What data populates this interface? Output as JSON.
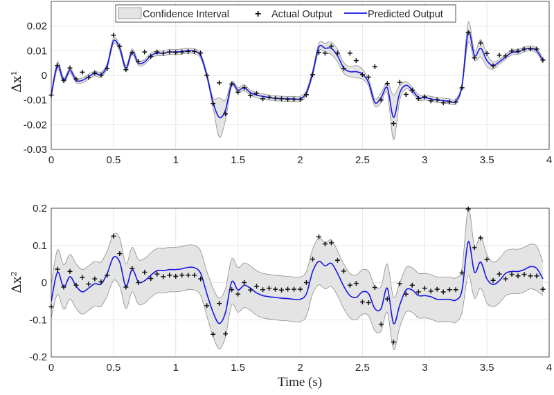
{
  "legend": {
    "ci_label": "Confidence Interval",
    "actual_label": "Actual Output",
    "predicted_label": "Predicted Output"
  },
  "colors": {
    "predicted": "#1414e6",
    "ci_fill": "#e4e4e4",
    "ci_edge": "#8c8c8c",
    "actual": "#111111",
    "grid": "#e6e6e6"
  },
  "chart_data": [
    {
      "type": "line",
      "ylabel": "Δx¹",
      "xlabel": "",
      "xlim": [
        0,
        4
      ],
      "ylim": [
        -0.03,
        0.03
      ],
      "xticks": [
        "0",
        "0.5",
        "1",
        "1.5",
        "2",
        "2.5",
        "3",
        "3.5",
        "4"
      ],
      "yticks": [
        "-0.03",
        "-0.02",
        "-0.01",
        "0",
        "0.01",
        "0.02"
      ],
      "ytick_values": [
        -0.03,
        -0.02,
        -0.01,
        0,
        0.01,
        0.02
      ],
      "grid": true,
      "legend_position": "top",
      "x_start": 0,
      "x_step": 0.05,
      "series": [
        {
          "name": "Actual Output",
          "marker": "+",
          "values": [
            -0.008,
            0.004,
            -0.002,
            0.003,
            -0.0015,
            0.0013,
            -0.0008,
            0.001,
            0.0001,
            0.0028,
            0.0163,
            0.0118,
            0.0023,
            0.0093,
            0.0057,
            0.0095,
            0.0077,
            0.0095,
            0.009,
            0.0095,
            0.0093,
            0.0095,
            0.0097,
            0.0097,
            0.0091,
            0.0,
            -0.0114,
            -0.003,
            -0.0156,
            -0.0035,
            -0.0068,
            -0.005,
            -0.0082,
            -0.0073,
            -0.0095,
            -0.0088,
            -0.0092,
            -0.0095,
            -0.0097,
            -0.0097,
            -0.0097,
            -0.0078,
            0.0003,
            0.0093,
            0.009,
            0.0118,
            0.009,
            0.0028,
            0.009,
            0.006,
            0.0003,
            -0.0007,
            0.0035,
            -0.01,
            -0.0033,
            -0.0195,
            -0.0028,
            -0.0077,
            -0.006,
            -0.0094,
            -0.0087,
            -0.0103,
            -0.0098,
            -0.0111,
            -0.0108,
            -0.0108,
            -0.005,
            0.0173,
            0.0071,
            0.0131,
            0.0089,
            0.0039,
            0.0082,
            0.0079,
            0.0099,
            0.0099,
            0.0107,
            0.0107,
            0.0107,
            0.0062
          ]
        },
        {
          "name": "Predicted Output",
          "values": [
            -0.008,
            0.004,
            -0.002,
            0.002,
            -0.002,
            -0.002,
            -0.0005,
            0.0008,
            0.0003,
            0.004,
            0.014,
            0.011,
            0.003,
            0.0095,
            0.005,
            0.0055,
            0.008,
            0.009,
            0.009,
            0.0095,
            0.0095,
            0.0097,
            0.01,
            0.0098,
            0.008,
            0.0,
            -0.011,
            -0.017,
            -0.014,
            -0.0035,
            -0.006,
            -0.005,
            -0.007,
            -0.008,
            -0.0085,
            -0.009,
            -0.0093,
            -0.0094,
            -0.0095,
            -0.0095,
            -0.0095,
            -0.007,
            0.001,
            0.0115,
            0.011,
            0.011,
            0.008,
            0.003,
            0.0015,
            0.0015,
            0.0005,
            -0.003,
            -0.011,
            -0.009,
            -0.005,
            -0.017,
            -0.007,
            -0.004,
            -0.006,
            -0.009,
            -0.009,
            -0.0095,
            -0.01,
            -0.0102,
            -0.0105,
            -0.0105,
            -0.004,
            0.0175,
            0.008,
            0.011,
            0.006,
            0.004,
            0.0055,
            0.0075,
            0.0093,
            0.0095,
            0.0105,
            0.011,
            0.01,
            0.006
          ]
        },
        {
          "name": "Confidence Interval",
          "half_width": [
            0.001,
            0.0015,
            0.001,
            0.001,
            0.001,
            0.001,
            0.001,
            0.001,
            0.001,
            0.001,
            0.0012,
            0.0012,
            0.001,
            0.0012,
            0.001,
            0.001,
            0.001,
            0.001,
            0.001,
            0.001,
            0.001,
            0.001,
            0.001,
            0.001,
            0.001,
            0.001,
            0.002,
            0.008,
            0.004,
            0.001,
            0.001,
            0.0012,
            0.001,
            0.001,
            0.001,
            0.001,
            0.001,
            0.001,
            0.001,
            0.001,
            0.001,
            0.001,
            0.0012,
            0.0015,
            0.002,
            0.0025,
            0.0025,
            0.0022,
            0.002,
            0.0025,
            0.002,
            0.0015,
            0.0015,
            0.002,
            0.002,
            0.009,
            0.003,
            0.0015,
            0.0012,
            0.0012,
            0.001,
            0.001,
            0.001,
            0.001,
            0.001,
            0.001,
            0.001,
            0.004,
            0.002,
            0.0035,
            0.0025,
            0.0015,
            0.001,
            0.001,
            0.001,
            0.001,
            0.001,
            0.001,
            0.001,
            0.001
          ]
        }
      ]
    },
    {
      "type": "line",
      "ylabel": "Δx²",
      "xlabel": "Time (s)",
      "xlim": [
        0,
        4
      ],
      "ylim": [
        -0.2,
        0.2
      ],
      "xticks": [
        "0",
        "0.5",
        "1",
        "1.5",
        "2",
        "2.5",
        "3",
        "3.5",
        "4"
      ],
      "yticks": [
        "-0.2",
        "-0.1",
        "0",
        "0.1",
        "0.2"
      ],
      "ytick_values": [
        -0.2,
        -0.1,
        0,
        0.1,
        0.2
      ],
      "grid": true,
      "x_start": 0,
      "x_step": 0.05,
      "series": [
        {
          "name": "Actual Output",
          "marker": "+",
          "values": [
            -0.065,
            0.036,
            -0.012,
            0.03,
            -0.007,
            0.014,
            -0.004,
            0.01,
            0.002,
            0.02,
            0.125,
            0.078,
            -0.012,
            0.038,
            0.0,
            0.028,
            0.011,
            0.023,
            0.016,
            0.02,
            0.017,
            0.02,
            0.02,
            0.02,
            0.01,
            -0.062,
            -0.139,
            -0.056,
            -0.138,
            -0.019,
            -0.031,
            0.0,
            -0.02,
            -0.01,
            -0.019,
            -0.015,
            -0.018,
            -0.02,
            -0.018,
            -0.018,
            -0.018,
            0.0,
            0.063,
            0.123,
            0.104,
            0.107,
            0.06,
            0.031,
            -0.007,
            -0.002,
            -0.052,
            -0.054,
            -0.013,
            -0.112,
            -0.044,
            -0.16,
            -0.003,
            -0.031,
            -0.007,
            -0.025,
            -0.015,
            -0.023,
            -0.018,
            -0.025,
            -0.019,
            -0.019,
            0.026,
            0.198,
            0.094,
            0.12,
            0.062,
            0.006,
            0.023,
            0.01,
            0.022,
            0.018,
            0.022,
            0.018,
            0.018,
            -0.018
          ]
        },
        {
          "name": "Predicted Output",
          "values": [
            -0.05,
            0.028,
            -0.012,
            0.016,
            -0.01,
            -0.025,
            -0.015,
            -0.003,
            -0.004,
            0.025,
            0.068,
            0.055,
            -0.01,
            0.035,
            0.002,
            0.005,
            0.02,
            0.032,
            0.032,
            0.035,
            0.035,
            0.037,
            0.041,
            0.04,
            0.025,
            -0.03,
            -0.08,
            -0.11,
            -0.08,
            0.002,
            -0.02,
            -0.007,
            -0.015,
            -0.028,
            -0.035,
            -0.038,
            -0.04,
            -0.042,
            -0.043,
            -0.045,
            -0.045,
            -0.03,
            0.03,
            0.057,
            0.045,
            0.052,
            0.025,
            -0.01,
            -0.035,
            -0.04,
            -0.025,
            -0.03,
            -0.07,
            -0.07,
            -0.015,
            -0.11,
            -0.06,
            -0.02,
            -0.02,
            -0.035,
            -0.035,
            -0.038,
            -0.045,
            -0.045,
            -0.045,
            -0.047,
            -0.02,
            0.11,
            0.028,
            0.055,
            0.01,
            -0.005,
            0.005,
            0.025,
            0.03,
            0.03,
            0.035,
            0.043,
            0.038,
            0.01
          ]
        },
        {
          "name": "Confidence Interval",
          "half_width": [
            0.045,
            0.06,
            0.06,
            0.06,
            0.06,
            0.06,
            0.06,
            0.06,
            0.06,
            0.06,
            0.062,
            0.065,
            0.06,
            0.06,
            0.06,
            0.06,
            0.06,
            0.06,
            0.06,
            0.06,
            0.06,
            0.06,
            0.06,
            0.06,
            0.06,
            0.06,
            0.065,
            0.068,
            0.065,
            0.062,
            0.06,
            0.06,
            0.06,
            0.06,
            0.06,
            0.06,
            0.06,
            0.06,
            0.06,
            0.06,
            0.06,
            0.06,
            0.06,
            0.063,
            0.062,
            0.063,
            0.06,
            0.06,
            0.06,
            0.06,
            0.06,
            0.06,
            0.06,
            0.06,
            0.065,
            0.07,
            0.06,
            0.06,
            0.06,
            0.06,
            0.06,
            0.06,
            0.06,
            0.06,
            0.06,
            0.06,
            0.06,
            0.09,
            0.07,
            0.07,
            0.065,
            0.06,
            0.06,
            0.06,
            0.06,
            0.06,
            0.06,
            0.06,
            0.06,
            0.045
          ]
        }
      ]
    }
  ]
}
